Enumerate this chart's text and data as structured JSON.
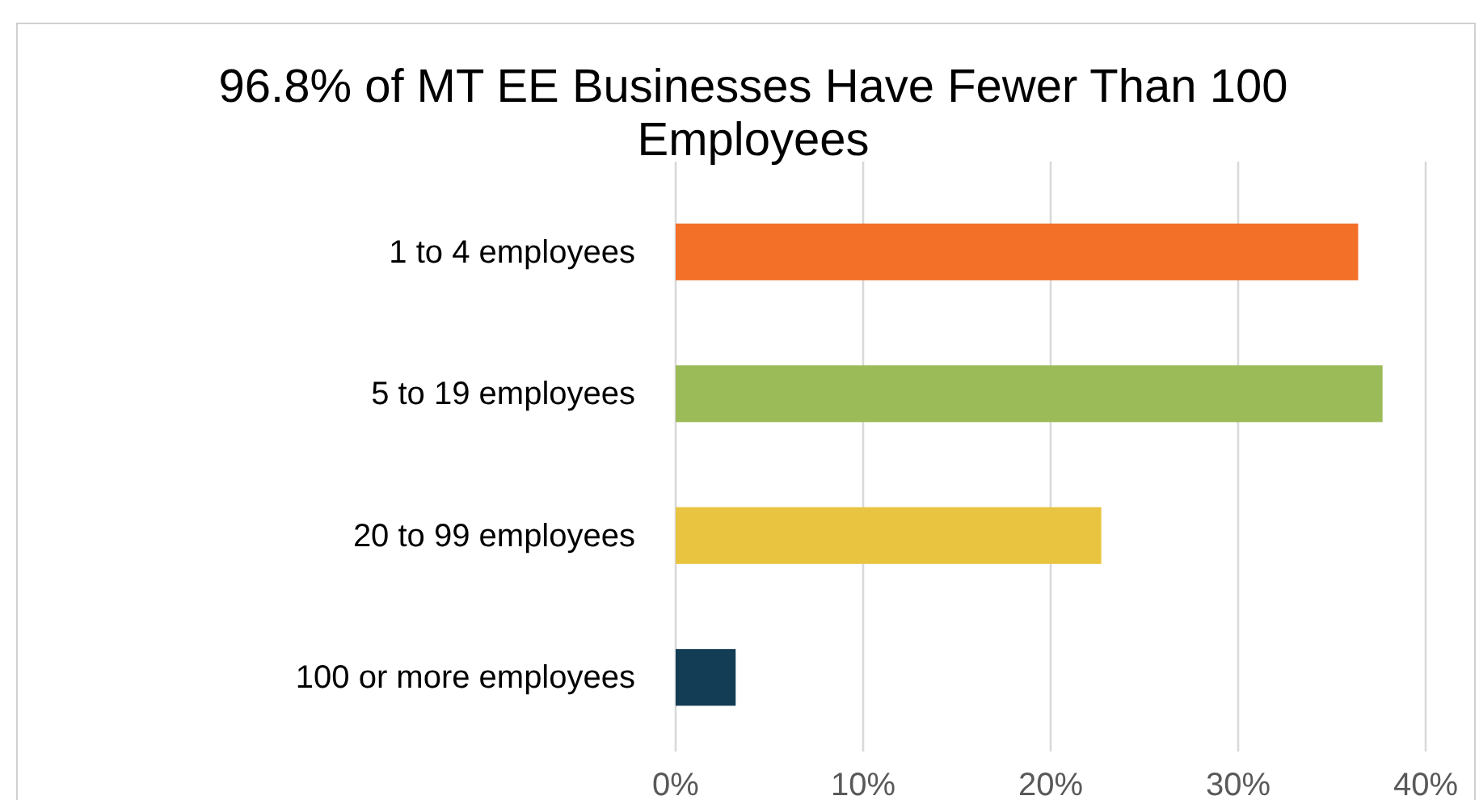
{
  "chart_data": {
    "type": "bar",
    "orientation": "horizontal",
    "title": "96.8% of MT EE Businesses Have Fewer Than 100 Employees",
    "categories": [
      "1 to 4 employees",
      "5 to 19 employees",
      "20 to 99 employees",
      "100 or more employees"
    ],
    "values": [
      36.4,
      37.7,
      22.7,
      3.2
    ],
    "colors": [
      "#f37029",
      "#9bbb59",
      "#e9c440",
      "#133d55"
    ],
    "xlim": [
      0,
      40
    ],
    "xticks": [
      {
        "value": 0,
        "label": "0%"
      },
      {
        "value": 10,
        "label": "10%"
      },
      {
        "value": 20,
        "label": "20%"
      },
      {
        "value": 30,
        "label": "30%"
      },
      {
        "value": 40,
        "label": "40%"
      }
    ],
    "grid": "x"
  }
}
